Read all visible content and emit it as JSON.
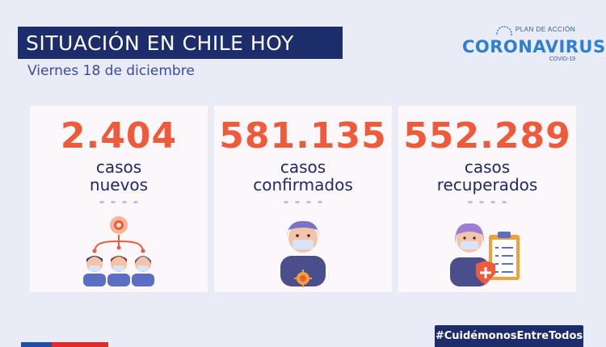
{
  "header": {
    "title": "SITUACIÓN EN CHILE HOY",
    "date": "Viernes 18 de diciembre"
  },
  "logo": {
    "plan": "PLAN DE ACCIÓN",
    "name": "CORONAVIRUS",
    "sub": "COVID-19"
  },
  "cards": [
    {
      "value": "2.404",
      "line1": "casos",
      "line2": "nuevos",
      "icon": "people-network-icon"
    },
    {
      "value": "581.135",
      "line1": "casos",
      "line2": "confirmados",
      "icon": "masked-person-icon"
    },
    {
      "value": "552.289",
      "line1": "casos",
      "line2": "recuperados",
      "icon": "doctor-clipboard-icon"
    }
  ],
  "footer": {
    "hashtag": "#CuidémonosEntreTodos"
  },
  "colors": {
    "navy": "#1d2c6b",
    "accent": "#ee5a3a",
    "card": "#fbf7fb",
    "background": "#e9ebf6"
  }
}
